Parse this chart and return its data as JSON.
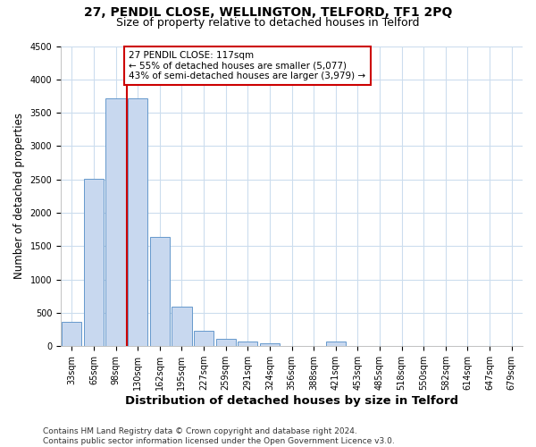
{
  "title_line1": "27, PENDIL CLOSE, WELLINGTON, TELFORD, TF1 2PQ",
  "title_line2": "Size of property relative to detached houses in Telford",
  "xlabel": "Distribution of detached houses by size in Telford",
  "ylabel": "Number of detached properties",
  "categories": [
    "33sqm",
    "65sqm",
    "98sqm",
    "130sqm",
    "162sqm",
    "195sqm",
    "227sqm",
    "259sqm",
    "291sqm",
    "324sqm",
    "356sqm",
    "388sqm",
    "421sqm",
    "453sqm",
    "485sqm",
    "518sqm",
    "550sqm",
    "582sqm",
    "614sqm",
    "647sqm",
    "679sqm"
  ],
  "values": [
    370,
    2510,
    3710,
    3710,
    1640,
    590,
    225,
    105,
    65,
    40,
    0,
    0,
    65,
    0,
    0,
    0,
    0,
    0,
    0,
    0,
    0
  ],
  "bar_color": "#c8d8ef",
  "bar_edge_color": "#6699cc",
  "highlight_index": 3,
  "highlight_line_color": "#cc0000",
  "ylim": [
    0,
    4500
  ],
  "yticks": [
    0,
    500,
    1000,
    1500,
    2000,
    2500,
    3000,
    3500,
    4000,
    4500
  ],
  "annotation_text": "27 PENDIL CLOSE: 117sqm\n← 55% of detached houses are smaller (5,077)\n43% of semi-detached houses are larger (3,979) →",
  "annotation_box_color": "#ffffff",
  "annotation_box_edge": "#cc0000",
  "footnote": "Contains HM Land Registry data © Crown copyright and database right 2024.\nContains public sector information licensed under the Open Government Licence v3.0.",
  "background_color": "#ffffff",
  "plot_bg_color": "#ffffff",
  "grid_color": "#ccddee",
  "title_fontsize": 10,
  "subtitle_fontsize": 9,
  "tick_fontsize": 7,
  "ylabel_fontsize": 8.5,
  "xlabel_fontsize": 9.5,
  "footnote_fontsize": 6.5
}
